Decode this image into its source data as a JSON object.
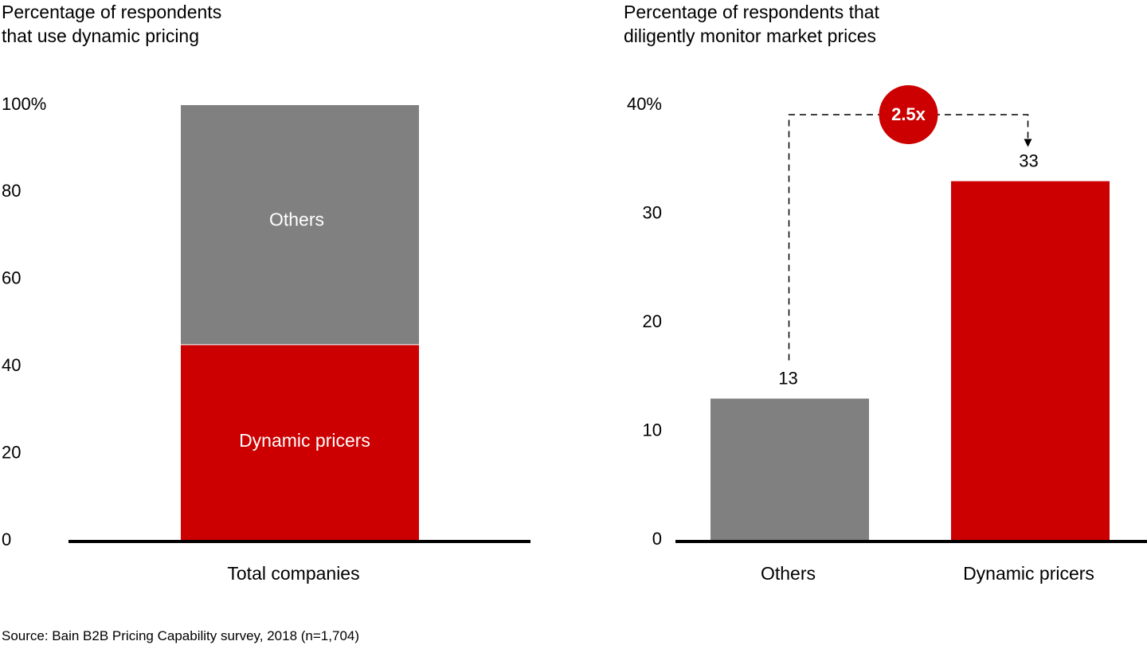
{
  "colors": {
    "red": "#cc0000",
    "gray": "#808080",
    "axis": "#000000",
    "segment_label": "#ffffff"
  },
  "left_title": [
    "Percentage of respondents",
    "that use dynamic pricing"
  ],
  "right_title": [
    "Percentage of respondents that",
    "diligently monitor market prices"
  ],
  "source": "Source: Bain B2B Pricing Capability survey, 2018 (n=1,704)",
  "chart_data": [
    {
      "type": "bar",
      "stacked": true,
      "categories": [
        "Total companies"
      ],
      "series": [
        {
          "name": "Dynamic pricers",
          "values": [
            45
          ],
          "color": "#cc0000"
        },
        {
          "name": "Others",
          "values": [
            55
          ],
          "color": "#808080"
        }
      ],
      "ylim": [
        0,
        100
      ],
      "yticks": [
        "0",
        "20",
        "40",
        "60",
        "80",
        "100%"
      ],
      "grid": false,
      "legend": "labels inside bar segments"
    },
    {
      "type": "bar",
      "categories": [
        "Others",
        "Dynamic pricers"
      ],
      "values": [
        13,
        33
      ],
      "colors": [
        "#808080",
        "#cc0000"
      ],
      "value_labels": [
        "13",
        "33"
      ],
      "ylim": [
        0,
        40
      ],
      "yticks": [
        "0",
        "10",
        "20",
        "30",
        "40%"
      ],
      "annotation": "2.5x",
      "grid": false
    }
  ]
}
